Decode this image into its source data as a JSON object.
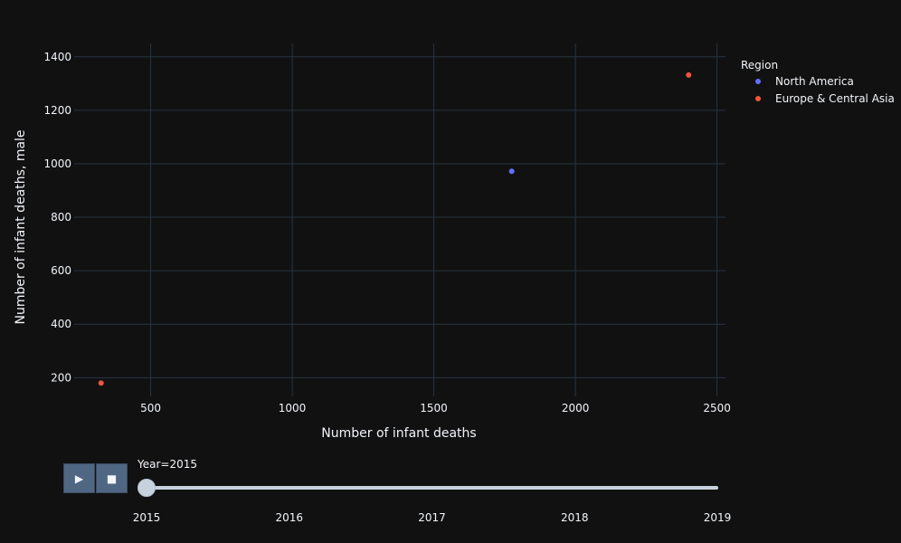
{
  "chart_data": {
    "type": "scatter",
    "xlabel": "Number of infant deaths",
    "ylabel": "Number of infant deaths, male",
    "xlim": [
      230,
      2530
    ],
    "ylim": [
      130,
      1450
    ],
    "x_ticks": [
      500,
      1000,
      1500,
      2000,
      2500
    ],
    "y_ticks": [
      200,
      400,
      600,
      800,
      1000,
      1200,
      1400
    ],
    "grid": true,
    "legend": {
      "title": "Region",
      "placement": "top-right"
    },
    "series": [
      {
        "name": "North America",
        "color": "#636efa",
        "points": [
          {
            "x": 1775,
            "y": 972
          }
        ]
      },
      {
        "name": "Europe & Central Asia",
        "color": "#ef553b",
        "points": [
          {
            "x": 2400,
            "y": 1332
          },
          {
            "x": 325,
            "y": 180
          }
        ]
      }
    ]
  },
  "animation": {
    "play_icon": "▶",
    "pause_icon": "■",
    "current_value": "Year=2015",
    "steps": [
      "2015",
      "2016",
      "2017",
      "2018",
      "2019"
    ],
    "current_step": 0
  },
  "colors": {
    "background": "#111111",
    "grid": "#283442",
    "text": "#f2f5fa"
  }
}
